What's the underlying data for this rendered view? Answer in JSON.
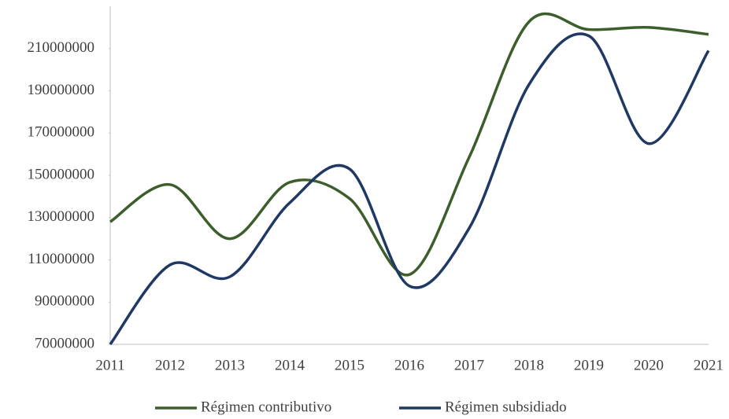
{
  "chart_data": {
    "type": "line",
    "categories": [
      "2011",
      "2012",
      "2013",
      "2014",
      "2015",
      "2016",
      "2017",
      "2018",
      "2019",
      "2020",
      "2021"
    ],
    "series": [
      {
        "name": "Régimen contributivo",
        "color": "#3b5e2b",
        "values": [
          128000000,
          145600000,
          120000000,
          146700000,
          139000000,
          103000000,
          158600000,
          222700000,
          219000000,
          220000000,
          216700000
        ]
      },
      {
        "name": "Régimen subsidiado",
        "color": "#1f3864",
        "values": [
          70000000,
          107600000,
          102000000,
          137000000,
          153000000,
          97600000,
          125000000,
          193000000,
          216000000,
          165000000,
          209000000
        ]
      }
    ],
    "ylim": [
      70000000,
      230000000
    ],
    "yticks": [
      70000000,
      90000000,
      110000000,
      130000000,
      150000000,
      170000000,
      190000000,
      210000000
    ],
    "smooth": true,
    "grid": false,
    "legend": "bottom"
  }
}
